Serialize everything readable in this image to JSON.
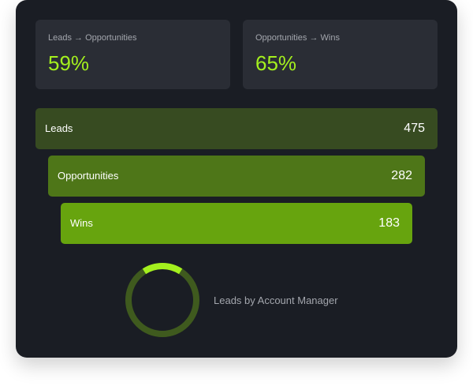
{
  "stats": [
    {
      "label": "Leads → Opportunities",
      "value": "59%"
    },
    {
      "label": "Opportunities → Wins",
      "value": "65%"
    }
  ],
  "funnel": [
    {
      "label": "Leads",
      "value": "475"
    },
    {
      "label": "Opportunities",
      "value": "282"
    },
    {
      "label": "Wins",
      "value": "183"
    }
  ],
  "donut": {
    "label": "Leads by Account Manager",
    "highlight_fraction": 0.18
  },
  "colors": {
    "card_bg": "#1a1d24",
    "stat_bg": "#2a2d35",
    "accent": "#a4f01e",
    "leads_bar": "#374b21",
    "opportunities_bar": "#4e7618",
    "wins_bar": "#67a40e",
    "donut_track": "#3f5a1e",
    "donut_highlight": "#a4f01e"
  }
}
